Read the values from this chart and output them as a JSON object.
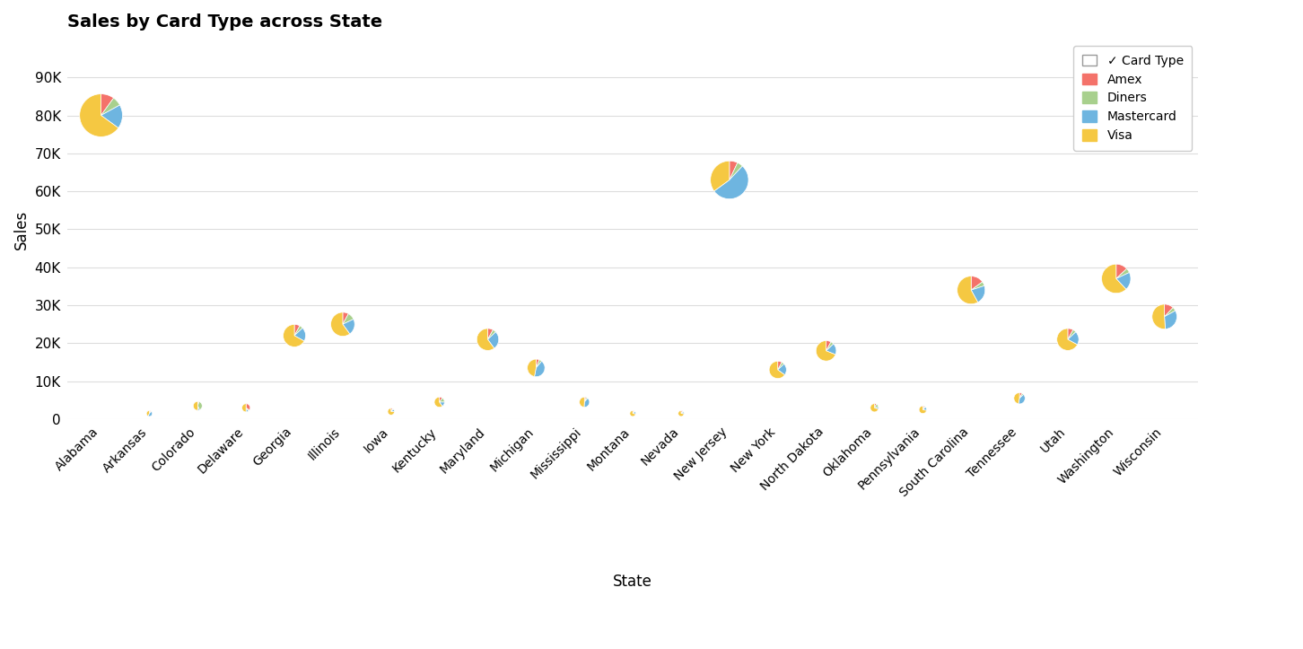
{
  "title": "Sales by Card Type across State",
  "xlabel": "State",
  "ylabel": "Sales",
  "colors": {
    "Amex": "#F4726A",
    "Diners": "#A8D08D",
    "Mastercard": "#6EB5E0",
    "Visa": "#F5C842"
  },
  "card_types": [
    "Amex",
    "Diners",
    "Mastercard",
    "Visa"
  ],
  "ylim": [
    0,
    100000
  ],
  "yticks": [
    0,
    10000,
    20000,
    30000,
    40000,
    50000,
    60000,
    70000,
    80000,
    90000
  ],
  "ytick_labels": [
    "0",
    "10K",
    "20K",
    "30K",
    "40K",
    "50K",
    "60K",
    "70K",
    "80K",
    "90K"
  ],
  "states": [
    "Alabama",
    "Arkansas",
    "Colorado",
    "Delaware",
    "Georgia",
    "Illinois",
    "Iowa",
    "Kentucky",
    "Maryland",
    "Michigan",
    "Mississippi",
    "Montana",
    "Nevada",
    "New Jersey",
    "New York",
    "North Dakota",
    "Oklahoma",
    "Pennsylvania",
    "South Carolina",
    "Tennessee",
    "Utah",
    "Washington",
    "Wisconsin"
  ],
  "data": [
    {
      "state": "Alabama",
      "total": 80000,
      "Amex": 0.1,
      "Diners": 0.07,
      "Mastercard": 0.18,
      "Visa": 0.65
    },
    {
      "state": "Arkansas",
      "total": 1500,
      "Amex": 0.08,
      "Diners": 0.05,
      "Mastercard": 0.45,
      "Visa": 0.42
    },
    {
      "state": "Colorado",
      "total": 3500,
      "Amex": 0.05,
      "Diners": 0.38,
      "Mastercard": 0.07,
      "Visa": 0.5
    },
    {
      "state": "Delaware",
      "total": 3000,
      "Amex": 0.35,
      "Diners": 0.05,
      "Mastercard": 0.1,
      "Visa": 0.5
    },
    {
      "state": "Georgia",
      "total": 22000,
      "Amex": 0.08,
      "Diners": 0.05,
      "Mastercard": 0.2,
      "Visa": 0.67
    },
    {
      "state": "Illinois",
      "total": 25000,
      "Amex": 0.08,
      "Diners": 0.1,
      "Mastercard": 0.22,
      "Visa": 0.6
    },
    {
      "state": "Iowa",
      "total": 2000,
      "Amex": 0.08,
      "Diners": 0.05,
      "Mastercard": 0.12,
      "Visa": 0.75
    },
    {
      "state": "Kentucky",
      "total": 4500,
      "Amex": 0.1,
      "Diners": 0.15,
      "Mastercard": 0.15,
      "Visa": 0.6
    },
    {
      "state": "Maryland",
      "total": 21000,
      "Amex": 0.08,
      "Diners": 0.05,
      "Mastercard": 0.27,
      "Visa": 0.6
    },
    {
      "state": "Michigan",
      "total": 13500,
      "Amex": 0.06,
      "Diners": 0.05,
      "Mastercard": 0.42,
      "Visa": 0.47
    },
    {
      "state": "Mississippi",
      "total": 4500,
      "Amex": 0.06,
      "Diners": 0.05,
      "Mastercard": 0.4,
      "Visa": 0.49
    },
    {
      "state": "Montana",
      "total": 1500,
      "Amex": 0.08,
      "Diners": 0.05,
      "Mastercard": 0.15,
      "Visa": 0.72
    },
    {
      "state": "Nevada",
      "total": 1500,
      "Amex": 0.1,
      "Diners": 0.05,
      "Mastercard": 0.12,
      "Visa": 0.73
    },
    {
      "state": "New Jersey",
      "total": 63000,
      "Amex": 0.07,
      "Diners": 0.05,
      "Mastercard": 0.53,
      "Visa": 0.35
    },
    {
      "state": "New York",
      "total": 13000,
      "Amex": 0.08,
      "Diners": 0.05,
      "Mastercard": 0.22,
      "Visa": 0.65
    },
    {
      "state": "North Dakota",
      "total": 18000,
      "Amex": 0.08,
      "Diners": 0.05,
      "Mastercard": 0.18,
      "Visa": 0.69
    },
    {
      "state": "Oklahoma",
      "total": 3000,
      "Amex": 0.08,
      "Diners": 0.15,
      "Mastercard": 0.07,
      "Visa": 0.7
    },
    {
      "state": "Pennsylvania",
      "total": 2500,
      "Amex": 0.08,
      "Diners": 0.05,
      "Mastercard": 0.15,
      "Visa": 0.72
    },
    {
      "state": "South Carolina",
      "total": 34000,
      "Amex": 0.15,
      "Diners": 0.05,
      "Mastercard": 0.22,
      "Visa": 0.58
    },
    {
      "state": "Tennessee",
      "total": 5500,
      "Amex": 0.08,
      "Diners": 0.05,
      "Mastercard": 0.4,
      "Visa": 0.47
    },
    {
      "state": "Utah",
      "total": 21000,
      "Amex": 0.08,
      "Diners": 0.05,
      "Mastercard": 0.2,
      "Visa": 0.67
    },
    {
      "state": "Washington",
      "total": 37000,
      "Amex": 0.13,
      "Diners": 0.05,
      "Mastercard": 0.2,
      "Visa": 0.62
    },
    {
      "state": "Wisconsin",
      "total": 27000,
      "Amex": 0.12,
      "Diners": 0.05,
      "Mastercard": 0.32,
      "Visa": 0.51
    }
  ],
  "background_color": "#FFFFFF",
  "grid_color": "#DDDDDD",
  "border_color": "#CCCCCC"
}
